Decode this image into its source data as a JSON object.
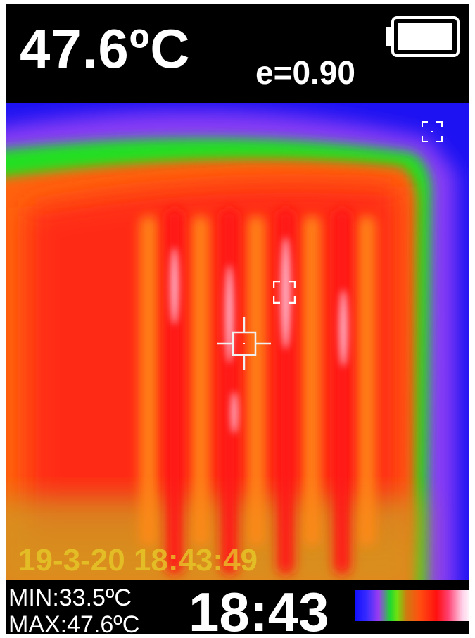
{
  "header": {
    "temperature": "47.6ºC",
    "emissivity": "e=0.90",
    "battery_icon": "battery-full-icon"
  },
  "thermal_view": {
    "timestamp": "19-3-20 18:43:49",
    "markers": [
      "cold-spot-marker-icon",
      "hot-spot-marker-icon",
      "center-crosshair-icon"
    ]
  },
  "footer": {
    "min": "MIN:33.5ºC",
    "max": "MAX:47.6ºC",
    "clock": "18:43",
    "palette_icon": "color-palette-bar"
  },
  "colors": {
    "cold": "#1a10f0",
    "cool": "#8a3cf5",
    "mid": "#24e020",
    "warm": "#ff6a10",
    "hot": "#ff1a1a",
    "hottest": "#ffe0f0"
  }
}
